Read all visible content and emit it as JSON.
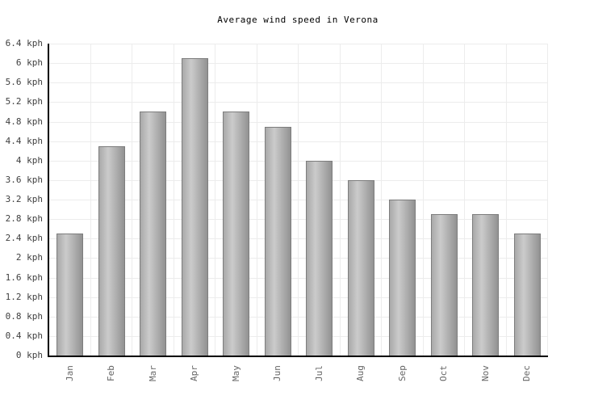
{
  "chart_data": {
    "type": "bar",
    "title": "Average wind speed in Verona",
    "categories": [
      "Jan",
      "Feb",
      "Mar",
      "Apr",
      "May",
      "Jun",
      "Jul",
      "Aug",
      "Sep",
      "Oct",
      "Nov",
      "Dec"
    ],
    "values": [
      2.5,
      4.3,
      5.0,
      6.1,
      5.0,
      4.7,
      4.0,
      3.6,
      3.2,
      2.9,
      2.9,
      2.5
    ],
    "unit": "kph",
    "xlabel": "",
    "ylabel": "",
    "ylim": [
      0,
      6.4
    ],
    "ytick_step": 0.4,
    "yticks": [
      "0 kph",
      "0.4 kph",
      "0.8 kph",
      "1.2 kph",
      "1.6 kph",
      "2 kph",
      "2.4 kph",
      "2.8 kph",
      "3.2 kph",
      "3.6 kph",
      "4 kph",
      "4.4 kph",
      "4.8 kph",
      "5.2 kph",
      "5.6 kph",
      "6 kph",
      "6.4 kph"
    ],
    "grid": true,
    "legend": "none",
    "xtick_rotation_deg": -90
  },
  "colors": {
    "background": "#ffffff",
    "bar_gradient": [
      "#a9a9a9",
      "#cbcbcb",
      "#929292"
    ],
    "bar_border": "#7d7d7d",
    "grid": "#ececec",
    "axis": "#000000",
    "title_text": "#000000",
    "ytick_text": "#3f3f3f",
    "xtick_text": "#666666"
  }
}
